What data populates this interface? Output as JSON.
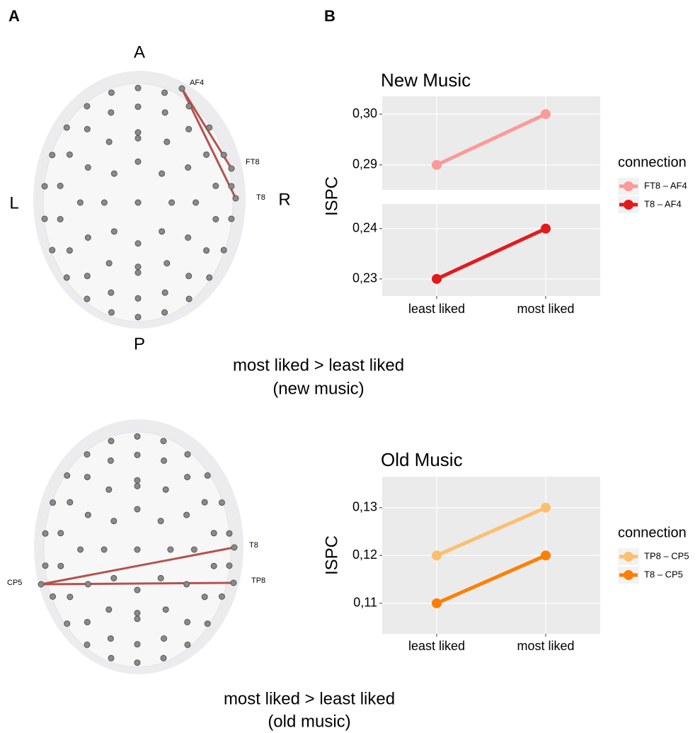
{
  "panel_labels": [
    "A",
    "B"
  ],
  "brain_plots": [
    {
      "orientation": {
        "anterior": "A",
        "left": "L",
        "right": "R",
        "posterior": "P"
      },
      "electrodes": [
        "AF4",
        "FT8",
        "T8"
      ],
      "caption": [
        "most liked > least liked",
        "(new music)"
      ]
    },
    {
      "electrodes": [
        "T8",
        "CP5",
        "TP8"
      ],
      "caption": [
        "most liked > least liked",
        "(old music)"
      ]
    }
  ],
  "chart_data": [
    {
      "type": "line",
      "title": "New Music",
      "y_label": "ISPC",
      "legend_title": "connection",
      "categories": [
        "least liked",
        "most liked"
      ],
      "grid": true,
      "panels": [
        {
          "ylim": [
            0.2851,
            0.3035
          ],
          "yticks": [
            {
              "value": 0.29,
              "label": "0,29"
            },
            {
              "value": 0.3,
              "label": "0,30"
            }
          ],
          "series": [
            {
              "name": "FT8 – AF4",
              "color": "#fb9a99",
              "values": [
                0.29,
                0.3
              ]
            }
          ]
        },
        {
          "ylim": [
            0.2266,
            0.2449
          ],
          "yticks": [
            {
              "value": 0.23,
              "label": "0,23"
            },
            {
              "value": 0.24,
              "label": "0,24"
            }
          ],
          "series": [
            {
              "name": "T8 – AF4",
              "color": "#e31a1c",
              "values": [
                0.23,
                0.24
              ]
            }
          ]
        }
      ]
    },
    {
      "type": "line",
      "title": "Old Music",
      "y_label": "ISPC",
      "legend_title": "connection",
      "categories": [
        "least liked",
        "most liked"
      ],
      "grid": true,
      "panels": [
        {
          "ylim": [
            0.1036,
            0.1365
          ],
          "yticks": [
            {
              "value": 0.11,
              "label": "0,11"
            },
            {
              "value": 0.12,
              "label": "0,12"
            },
            {
              "value": 0.13,
              "label": "0,13"
            }
          ],
          "series": [
            {
              "name": "TP8 – CP5",
              "color": "#fdbf6f",
              "values": [
                0.12,
                0.13
              ]
            },
            {
              "name": "T8 – CP5",
              "color": "#ff7f00",
              "values": [
                0.11,
                0.12
              ]
            }
          ]
        }
      ]
    }
  ]
}
